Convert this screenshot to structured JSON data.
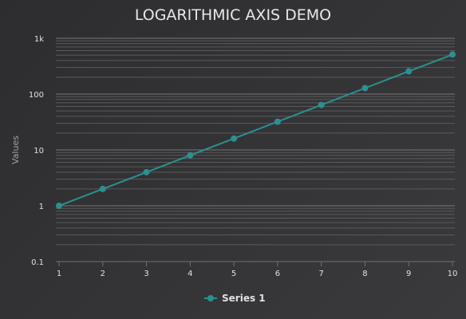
{
  "chart_data": {
    "type": "line",
    "title": "LOGARITHMIC AXIS DEMO",
    "xlabel": "",
    "ylabel": "Values",
    "x_ticks": [
      1,
      2,
      3,
      4,
      5,
      6,
      7,
      8,
      9,
      10
    ],
    "y_scale": "log",
    "y_ticks": [
      "0.1",
      "1",
      "10",
      "100",
      "1k"
    ],
    "ylim": [
      0.1,
      1000
    ],
    "xlim": [
      1,
      10
    ],
    "grid": true,
    "legend_position": "bottom",
    "series": [
      {
        "name": "Series 1",
        "color": "#2b908f",
        "x": [
          1,
          2,
          3,
          4,
          5,
          6,
          7,
          8,
          9,
          10
        ],
        "values": [
          1,
          2,
          4,
          8,
          16,
          32,
          64,
          128,
          256,
          512
        ]
      }
    ]
  }
}
